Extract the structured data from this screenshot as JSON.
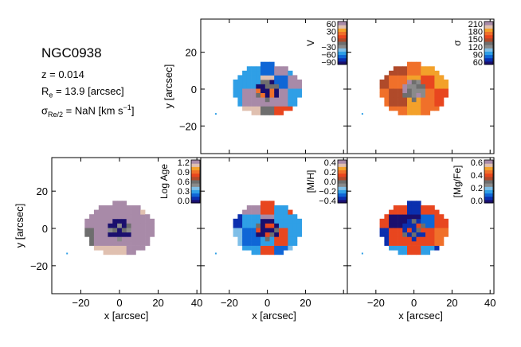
{
  "header": {
    "galaxy": "NGC0938",
    "redshift": "z = 0.014",
    "re_symbol": "R",
    "re_sub": "e",
    "re_value": " = 13.9 [arcsec]",
    "sigma_symbol": "σ",
    "sigma_sub": "Re/2",
    "sigma_value": " = NaN [km s",
    "sigma_exp": "−1",
    "sigma_close": "]"
  },
  "chart_data": [
    {
      "type": "heatmap",
      "panel": "velocity",
      "colorbar_label": "V",
      "colorbar_ticks": [
        "60",
        "30",
        "0",
        "−30",
        "−60",
        "−90"
      ],
      "colorbar_range": [
        -90,
        60
      ],
      "ylabel": "y [arcsec]",
      "xlabel": "",
      "yticks": [
        "20",
        "0",
        "−20"
      ],
      "xticks": [],
      "xlim": [
        -35,
        42
      ],
      "ylim": [
        -35,
        38
      ]
    },
    {
      "type": "heatmap",
      "panel": "dispersion",
      "colorbar_label": "σ",
      "colorbar_ticks": [
        "210",
        "180",
        "150",
        "120",
        "90",
        "60"
      ],
      "colorbar_range": [
        60,
        210
      ],
      "ylabel": "",
      "xlabel": "",
      "yticks": [],
      "xticks": [],
      "xlim": [
        -35,
        42
      ],
      "ylim": [
        -35,
        38
      ]
    },
    {
      "type": "heatmap",
      "panel": "log_age",
      "colorbar_label": "Log Age",
      "colorbar_ticks": [
        "1.2",
        "0.9",
        "0.6",
        "0.3",
        "0.0"
      ],
      "colorbar_range": [
        0.0,
        1.2
      ],
      "ylabel": "y [arcsec]",
      "xlabel": "x [arcsec]",
      "yticks": [
        "20",
        "0",
        "−20"
      ],
      "xticks": [
        "−20",
        "0",
        "20",
        "40"
      ],
      "xlim": [
        -35,
        42
      ],
      "ylim": [
        -35,
        38
      ]
    },
    {
      "type": "heatmap",
      "panel": "metallicity",
      "colorbar_label": "[M/H]",
      "colorbar_ticks": [
        "0.4",
        "0.2",
        "0.0",
        "−0.2",
        "−0.4"
      ],
      "colorbar_range": [
        -0.4,
        0.4
      ],
      "ylabel": "",
      "xlabel": "x [arcsec]",
      "yticks": [],
      "xticks": [
        "−20",
        "0",
        "20"
      ],
      "xlim": [
        -35,
        42
      ],
      "ylim": [
        -35,
        38
      ]
    },
    {
      "type": "heatmap",
      "panel": "alpha_fe",
      "colorbar_label": "[Mg/Fe]",
      "colorbar_ticks": [
        "0.6",
        "0.4",
        "0.2",
        "0.0"
      ],
      "colorbar_range": [
        0.0,
        0.65
      ],
      "ylabel": "",
      "xlabel": "x [arcsec]",
      "yticks": [],
      "xticks": [
        "−20",
        "0",
        "20",
        "40"
      ],
      "xlim": [
        -35,
        42
      ],
      "ylim": [
        -35,
        38
      ]
    }
  ],
  "colors": {
    "frame": "#000000",
    "colormap": [
      "#1a0f6e",
      "#0b2fae",
      "#0f66d6",
      "#2f9fe6",
      "#7fbfe8",
      "#8a8a8a",
      "#6e6e6e",
      "#b04a2a",
      "#e8461f",
      "#f0702a",
      "#f3a12a",
      "#e0c0b0",
      "#a88aa8"
    ]
  }
}
